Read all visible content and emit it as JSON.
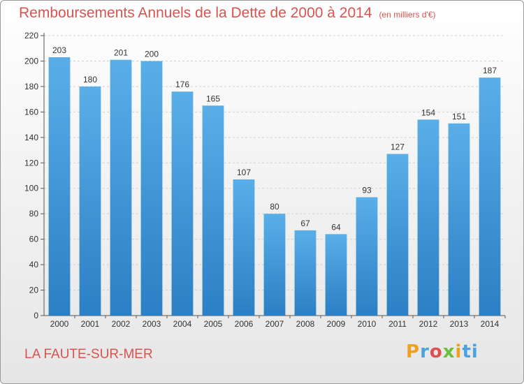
{
  "header": {
    "title": "Remboursements Annuels de la Dette de 2000 à 2014",
    "subtitle": "(en milliers d'€)"
  },
  "footer": {
    "place": "LA FAUTE-SUR-MER",
    "logo": [
      "P",
      "r",
      "o",
      "x",
      "i",
      "ti"
    ]
  },
  "colors": {
    "bar_top": "#5aaee8",
    "bar_bottom": "#2b7fc4",
    "title": "#d9534f"
  },
  "chart_data": {
    "type": "bar",
    "title": "Remboursements Annuels de la Dette de 2000 à 2014",
    "xlabel": "",
    "ylabel": "(en milliers d'€)",
    "categories": [
      "2000",
      "2001",
      "2002",
      "2003",
      "2004",
      "2005",
      "2006",
      "2007",
      "2008",
      "2009",
      "2010",
      "2011",
      "2012",
      "2013",
      "2014"
    ],
    "values": [
      203,
      180,
      201,
      200,
      176,
      165,
      107,
      80,
      67,
      64,
      93,
      127,
      154,
      151,
      187
    ],
    "ylim": [
      0,
      220
    ],
    "yticks": [
      0,
      20,
      40,
      60,
      80,
      100,
      120,
      140,
      160,
      180,
      200,
      220
    ],
    "grid": true
  }
}
